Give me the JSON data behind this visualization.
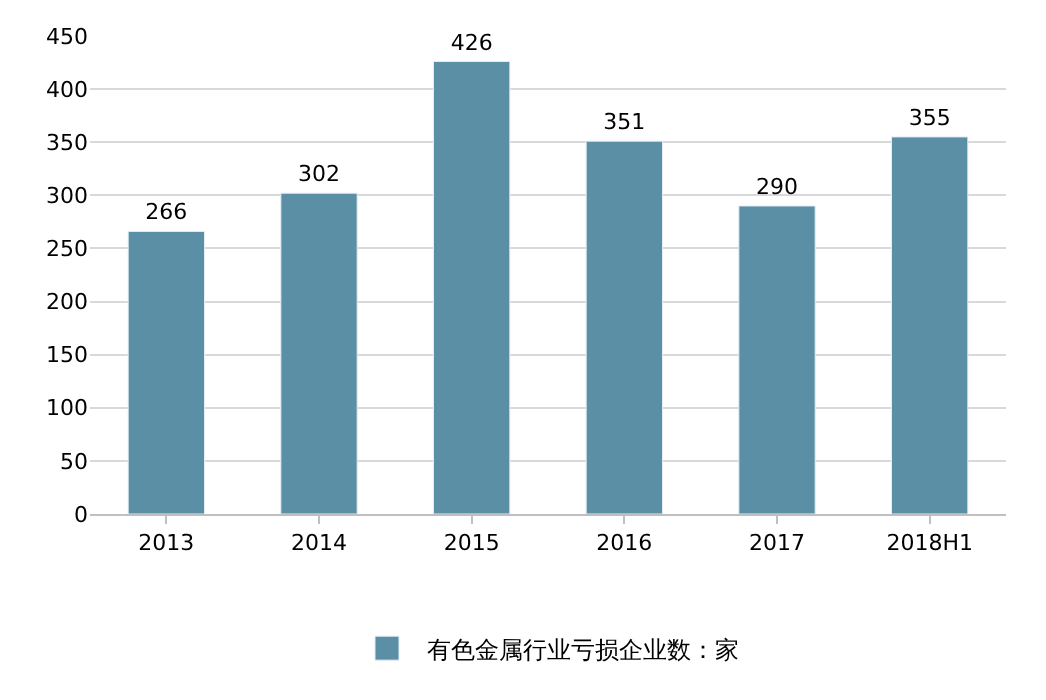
{
  "chart_data": {
    "type": "bar",
    "categories": [
      "2013",
      "2014",
      "2015",
      "2016",
      "2017",
      "2018H1"
    ],
    "series": [
      {
        "name": "有色金属行业亏损企业数：家",
        "color": "#5b8fa6",
        "values": [
          266,
          302,
          426,
          351,
          290,
          355
        ]
      }
    ],
    "ylim": [
      0,
      450
    ],
    "yticks": [
      0,
      50,
      100,
      150,
      200,
      250,
      300,
      350,
      400,
      450
    ],
    "grid": "y",
    "legend": "bottom",
    "data_labels": true
  }
}
